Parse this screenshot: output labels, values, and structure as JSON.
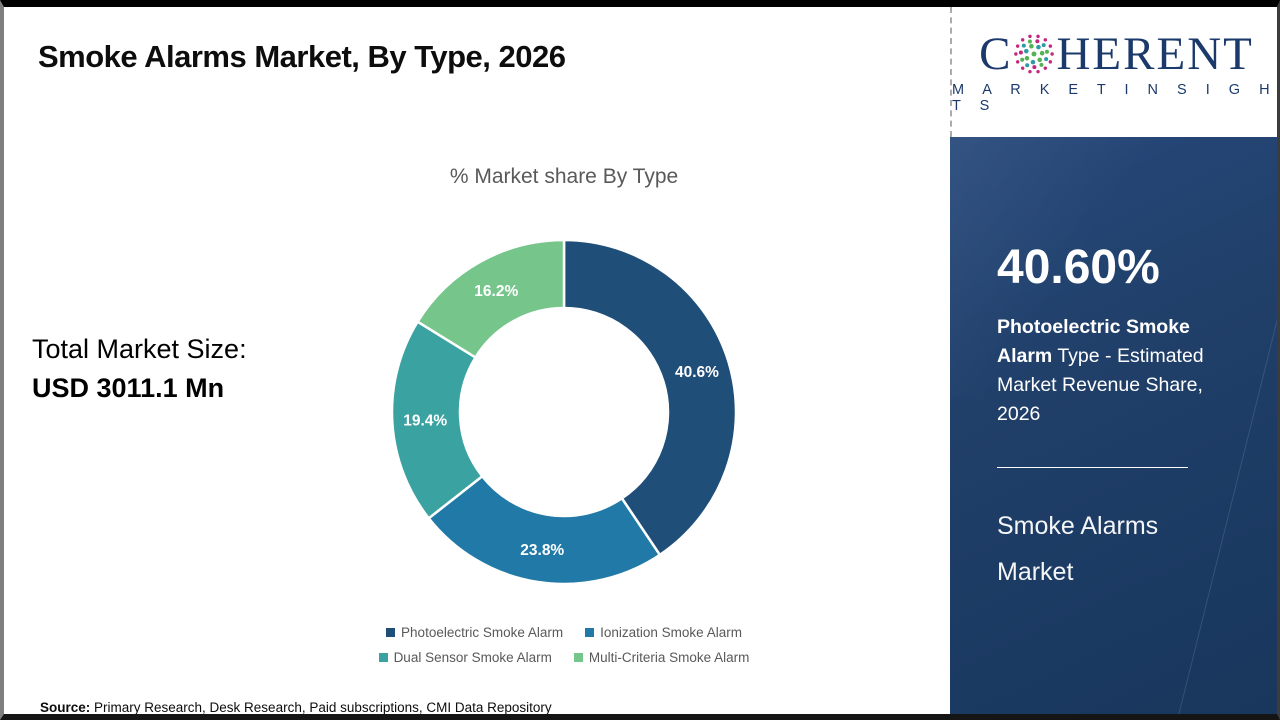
{
  "page": {
    "title": "Smoke Alarms Market, By Type, 2026",
    "source_label": "Source:",
    "source_text": " Primary Research, Desk Research, Paid subscriptions, CMI Data Repository"
  },
  "left_panel": {
    "total_label": "Total Market Size:",
    "total_value": "USD 3011.1 Mn"
  },
  "chart_data": {
    "type": "pie",
    "subtype": "donut",
    "title": "% Market share By Type",
    "categories": [
      "Photoelectric Smoke Alarm",
      "Ionization Smoke Alarm",
      "Dual Sensor Smoke Alarm",
      "Multi-Criteria Smoke Alarm"
    ],
    "values": [
      40.6,
      23.8,
      19.4,
      16.2
    ],
    "labels": [
      "40.6%",
      "23.8%",
      "19.4%",
      "16.2%"
    ],
    "colors": [
      "#1F4E79",
      "#2079A7",
      "#3AA2A0",
      "#76C68C"
    ],
    "start_angle_deg": 0,
    "direction": "clockwise",
    "legend_position": "bottom",
    "label_color": "#FFFFFF"
  },
  "logo": {
    "letter_c": "C",
    "letters_rest": "HERENT",
    "subtitle": "M A R K E T   I N S I G H T S",
    "navy": "#1B3A6B",
    "dot_magenta": "#C2267D",
    "dot_green": "#53B254",
    "dot_teal": "#2E9BA6"
  },
  "sidebar": {
    "stat_value": "40.60%",
    "desc_bold": "Photoelectric Smoke Alarm",
    "desc_rest": " Type - Estimated Market Revenue Share, 2026",
    "footer_title": "Smoke Alarms Market",
    "bg": "#1E3C64"
  }
}
